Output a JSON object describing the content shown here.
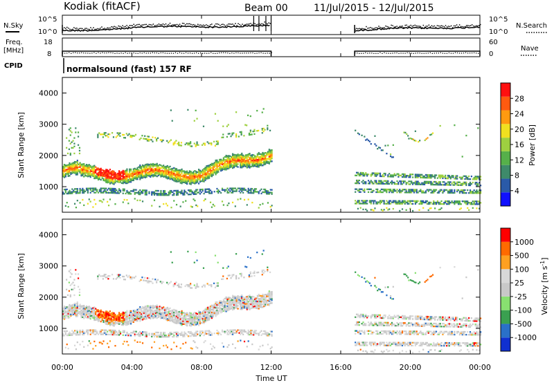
{
  "header": {
    "station": "Kodiak (fitACF)",
    "beam": "Beam 00",
    "date_range": "11/Jul/2015 - 12/Jul/2015"
  },
  "labels": {
    "nsky": "N.Sky",
    "freq": "Freq.",
    "freq_unit": "[MHz]",
    "cpid": "CPID",
    "nsearch": "N.Search",
    "nave": "Nave",
    "noise_tick_top": "10^5",
    "noise_tick_bottom": "10^0",
    "noise_right_top": "10^5",
    "noise_right_bottom": "10^0",
    "freq_tick_top": "18",
    "freq_tick_bottom": "8",
    "nave_tick_top": "60",
    "nave_tick_bottom": "0",
    "cpid_text": "normalsound (fast) 157 RF"
  },
  "colors": {
    "power_scale": [
      "#1010ff",
      "#2a5aa8",
      "#3e8a6a",
      "#56b04a",
      "#9ed040",
      "#f0e020",
      "#ff9a10",
      "#ff5a10",
      "#ff1010"
    ],
    "velocity_scale": [
      "#ff0000",
      "#ff6a00",
      "#ffa020",
      "#d8d8d8",
      "#c8c8c8",
      "#88e070",
      "#3aa050",
      "#2a70c8",
      "#1030d0"
    ]
  },
  "chart_data": [
    {
      "type": "heatmap",
      "name": "power",
      "ylabel": "Slant Range [km]",
      "yticks": [
        "1000",
        "2000",
        "3000",
        "4000"
      ],
      "ylim": [
        180,
        4500
      ],
      "colorbar_label": "Power [dB]",
      "colorbar_ticks": [
        "4",
        "8",
        "12",
        "16",
        "20",
        "24",
        "28"
      ],
      "echo_bands": [
        {
          "t_start": 0,
          "t_end": 12,
          "range_start": 1500,
          "range_end": 2100,
          "level": 20
        },
        {
          "t_start": 16.8,
          "t_end": 24,
          "range_start": 900,
          "range_end": 1400,
          "level": 12
        }
      ]
    },
    {
      "type": "heatmap",
      "name": "velocity",
      "ylabel": "Slant Range [km]",
      "yticks": [
        "1000",
        "2000",
        "3000",
        "4000"
      ],
      "ylim": [
        180,
        4500
      ],
      "colorbar_label": "Velocity [m s^-1]",
      "colorbar_ticks": [
        "1000",
        "500",
        "100",
        "25",
        "-25",
        "-100",
        "-500",
        "-1000"
      ]
    }
  ],
  "xaxis": {
    "ticks": [
      "00:00",
      "04:00",
      "08:00",
      "12:00",
      "16:00",
      "20:00",
      "00:00"
    ],
    "label": "Time UT"
  }
}
